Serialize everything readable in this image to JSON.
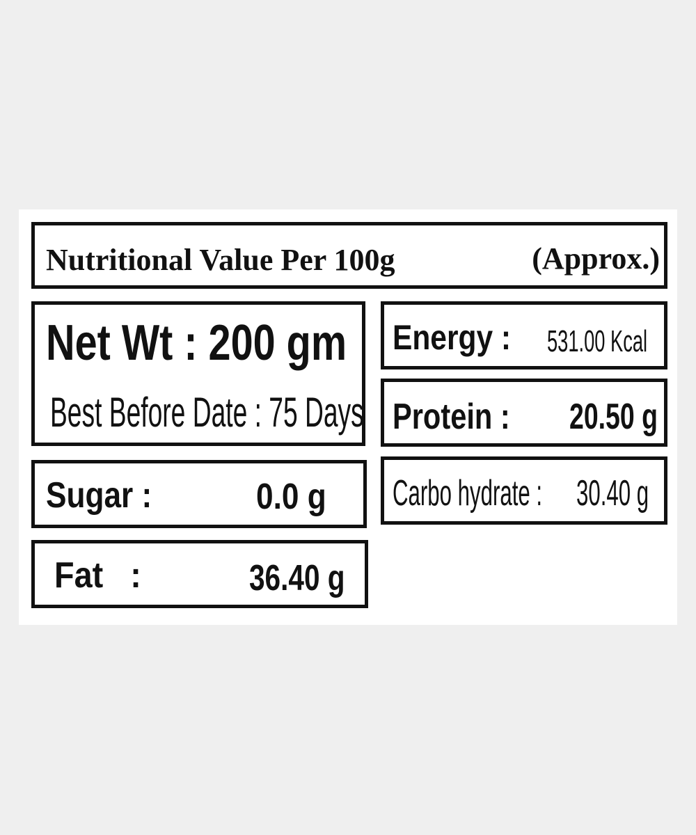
{
  "title": {
    "text": "Nutritional Value Per 100g",
    "approx": "(Approx.)"
  },
  "net_weight": {
    "label": "Net Wt : 200 gm",
    "best_before": "Best Before Date : 75 Days"
  },
  "rows": {
    "energy": {
      "label": "Energy :",
      "value": "531.00 Kcal"
    },
    "protein": {
      "label": "Protein  :",
      "value": "20.50 g"
    },
    "carbohydrate": {
      "label": "Carbo hydrate :",
      "value": "30.40 g"
    },
    "sugar": {
      "label": "Sugar :",
      "value": "0.0 g"
    },
    "fat": {
      "label": "Fat   :",
      "value": "36.40 g"
    }
  }
}
